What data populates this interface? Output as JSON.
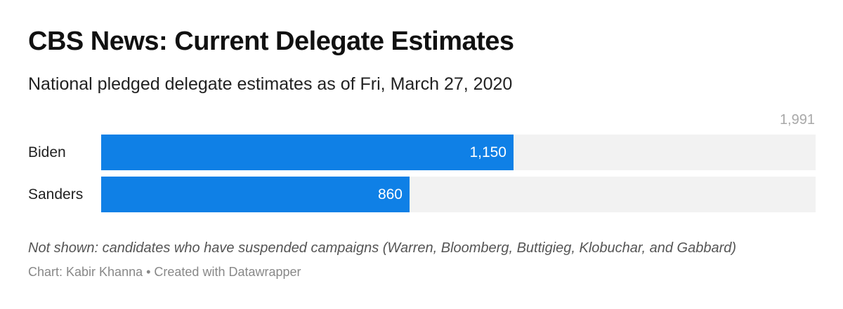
{
  "header": {
    "title": "CBS News: Current Delegate Estimates",
    "subtitle": "National pledged delegate estimates as of Fri, March 27, 2020"
  },
  "chart_data": {
    "type": "bar",
    "orientation": "horizontal",
    "categories": [
      "Biden",
      "Sanders"
    ],
    "values": [
      1150,
      860
    ],
    "value_labels": [
      "1,150",
      "860"
    ],
    "xlim": [
      0,
      1991
    ],
    "max_label": "1,991",
    "bar_color": "#0f80e6",
    "track_color": "#f2f2f2",
    "grid": false
  },
  "footer": {
    "note": "Not shown: candidates who have suspended campaigns (Warren, Bloomberg, Buttigieg, Klobuchar, and Gabbard)",
    "source": "Chart: Kabir Khanna • Created with Datawrapper"
  }
}
